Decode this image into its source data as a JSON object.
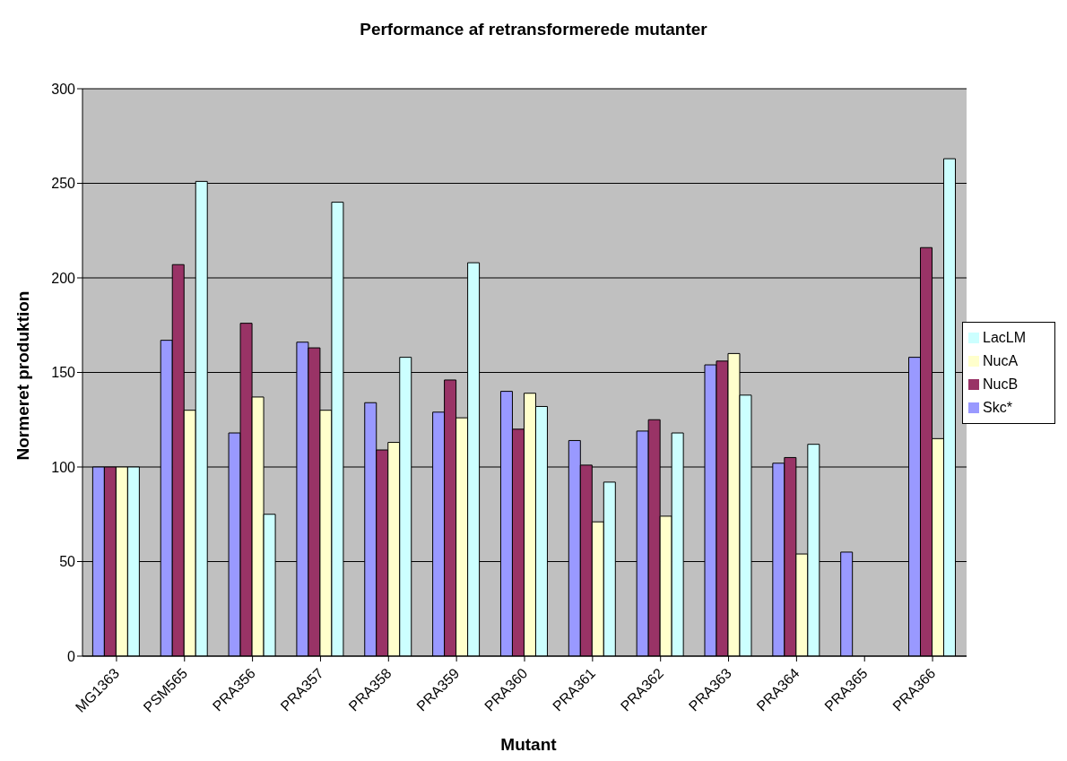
{
  "chart_data": {
    "type": "bar",
    "title": "Performance af retransformerede mutanter",
    "xlabel": "Mutant",
    "ylabel": "Normeret produktion",
    "categories": [
      "MG1363",
      "PSM565",
      "PRA356",
      "PRA357",
      "PRA358",
      "PRA359",
      "PRA360",
      "PRA361",
      "PRA362",
      "PRA363",
      "PRA364",
      "PRA365",
      "PRA366"
    ],
    "series": [
      {
        "name": "Skc*",
        "color": "#9999ff",
        "values": [
          100,
          167,
          118,
          166,
          134,
          129,
          140,
          114,
          119,
          154,
          102,
          55,
          158
        ]
      },
      {
        "name": "NucB",
        "color": "#993366",
        "values": [
          100,
          207,
          176,
          163,
          109,
          146,
          120,
          101,
          125,
          156,
          105,
          null,
          216
        ]
      },
      {
        "name": "NucA",
        "color": "#ffffcc",
        "values": [
          100,
          130,
          137,
          130,
          113,
          126,
          139,
          71,
          74,
          160,
          54,
          null,
          115
        ]
      },
      {
        "name": "LacLM",
        "color": "#ccffff",
        "values": [
          100,
          251,
          75,
          240,
          158,
          208,
          132,
          92,
          118,
          138,
          112,
          null,
          263
        ]
      }
    ],
    "ylim": [
      0,
      300
    ],
    "yticks": [
      0,
      50,
      100,
      150,
      200,
      250,
      300
    ],
    "grid": "y",
    "legend": "right"
  }
}
